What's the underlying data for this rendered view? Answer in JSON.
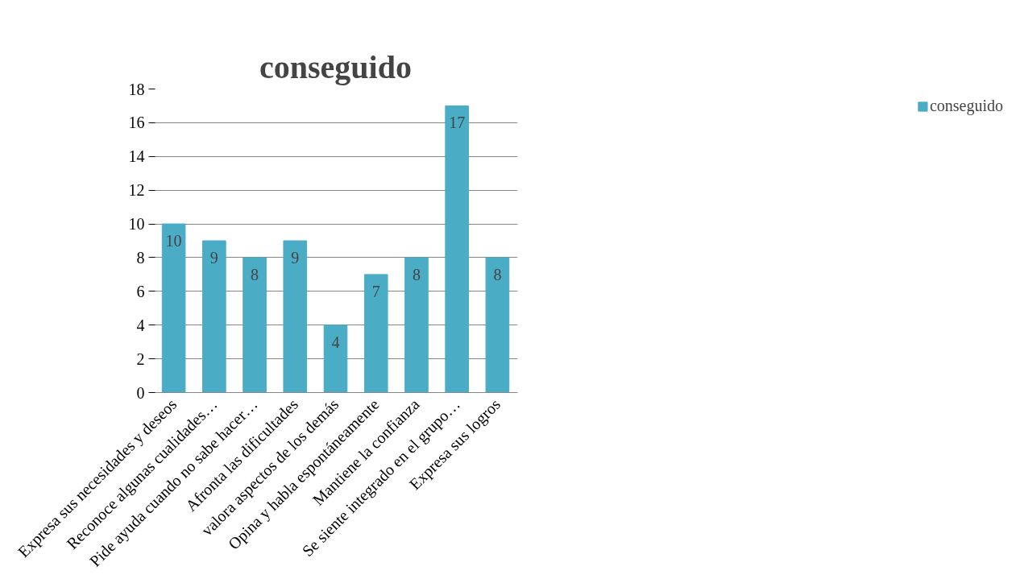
{
  "chart_data": {
    "type": "bar",
    "title": "conseguido",
    "categories": [
      "Expresa sus necesidades y deseos",
      "Reconoce algunas cualidades…",
      "Pide ayuda cuando no sabe hacer…",
      "Afronta las dificultades",
      "valora aspectos de los demás",
      "Opina y habla espontáneamente",
      "Mantiene la confianza",
      "Se siente integrado en el grupo…",
      "Expresa sus logros"
    ],
    "series": [
      {
        "name": "conseguido",
        "color": "#4bacc6",
        "values": [
          10,
          9,
          8,
          9,
          4,
          7,
          8,
          17,
          8
        ]
      }
    ],
    "ylim": [
      0,
      18
    ],
    "yticks": [
      0,
      2,
      4,
      6,
      8,
      10,
      12,
      14,
      16,
      18
    ],
    "grid": "y",
    "legend": "right",
    "data_labels": true
  }
}
